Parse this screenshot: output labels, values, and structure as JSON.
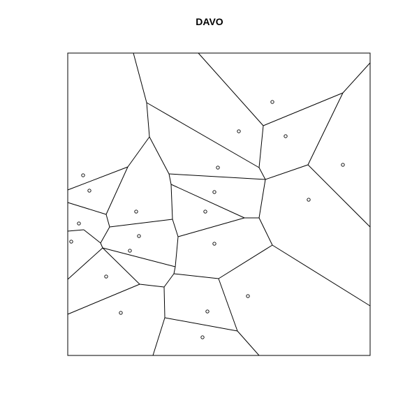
{
  "title": "DAVO",
  "diagram": {
    "type": "voronoi-tessellation",
    "line_color": "#000000",
    "background": "#ffffff",
    "site_count": 22,
    "vertex_count": 42,
    "edge_count": 63
  }
}
